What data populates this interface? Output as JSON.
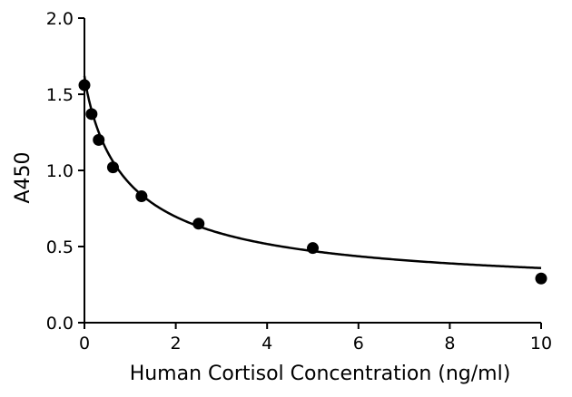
{
  "chart_data": {
    "type": "scatter",
    "title": "",
    "xlabel": "Human Cortisol Concentration (ng/ml)",
    "ylabel": "A450",
    "xlim": [
      0,
      10
    ],
    "ylim": [
      0,
      2.0
    ],
    "x_ticks": [
      0,
      2,
      4,
      6,
      8,
      10
    ],
    "y_ticks": [
      0.0,
      0.5,
      1.0,
      1.5,
      2.0
    ],
    "x_tick_labels": [
      "0",
      "2",
      "4",
      "6",
      "8",
      "10"
    ],
    "y_tick_labels": [
      "0.0",
      "0.5",
      "1.0",
      "1.5",
      "2.0"
    ],
    "grid": false,
    "legend": false,
    "point_color": "#000000",
    "curve_color": "#000000",
    "series": [
      {
        "points": [
          {
            "x": 0,
            "y": 1.56
          },
          {
            "x": 0.156,
            "y": 1.37
          },
          {
            "x": 0.3125,
            "y": 1.2
          },
          {
            "x": 0.625,
            "y": 1.02
          },
          {
            "x": 1.25,
            "y": 0.83
          },
          {
            "x": 2.5,
            "y": 0.65
          },
          {
            "x": 5,
            "y": 0.49
          },
          {
            "x": 10,
            "y": 0.29
          }
        ]
      }
    ],
    "fit_curve": {
      "type": "four-parameter-logistic",
      "top": 1.62,
      "bottom": 0.2,
      "ec50": 1.0,
      "hill": 0.9
    }
  }
}
